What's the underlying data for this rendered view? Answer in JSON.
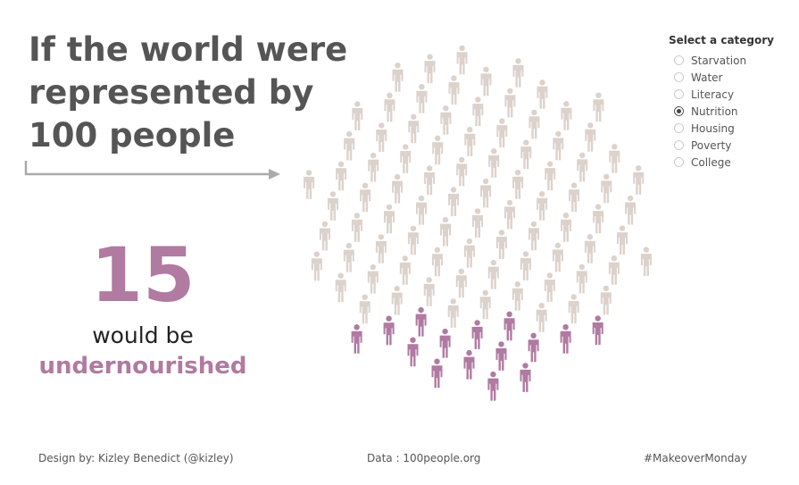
{
  "title": "If the world were represented by 100 people",
  "big_number": "15",
  "caption_line1": "would be",
  "caption_highlight": "undernourished",
  "colors": {
    "highlight": "#b07aa1",
    "other": "#dcd2cc",
    "title": "#555555",
    "arrow": "#aaaaaa"
  },
  "category_filter": {
    "title": "Select a category",
    "selected": "Nutrition",
    "options": [
      "Starvation",
      "Water",
      "Literacy",
      "Nutrition",
      "Housing",
      "Poverty",
      "College"
    ]
  },
  "footer": {
    "credit": "Design by: Kizley Benedict (@kizley)",
    "data_source": "Data : 100people.org",
    "hashtag": "#MakeoverMonday"
  },
  "chart_data": {
    "type": "pictogram",
    "total": 100,
    "highlighted": 15,
    "highlight_label": "undernourished",
    "icon": "person-icon"
  }
}
